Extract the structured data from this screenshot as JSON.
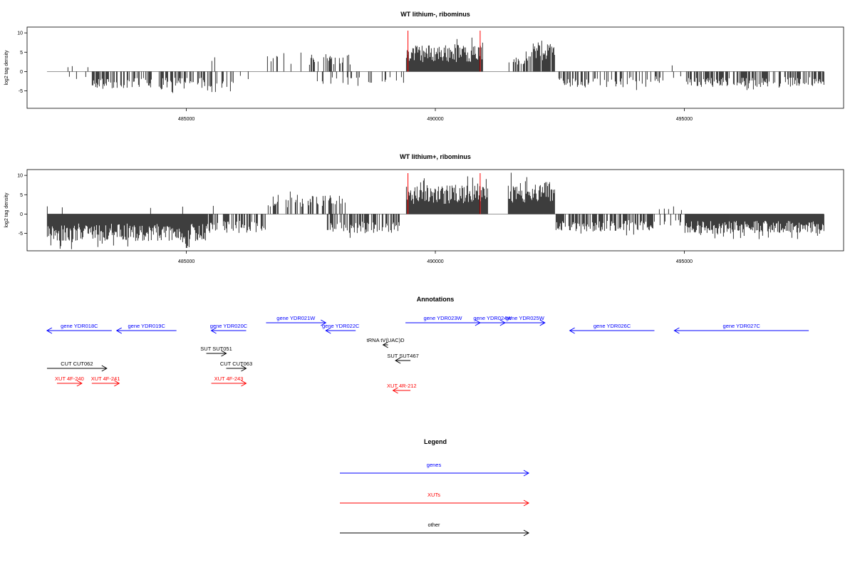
{
  "chart_data": [
    {
      "type": "bar",
      "title": "WT lithium-, ribominus",
      "ylabel": "log2 tag density",
      "xlabel": "",
      "xlim": [
        481800,
        498200
      ],
      "ylim": [
        -9.5,
        11.5
      ],
      "yticks": [
        -5,
        0,
        5,
        10
      ],
      "xticks": [
        485000,
        490000,
        495000
      ],
      "marker_lines": [
        489450,
        490900
      ],
      "marker_color": "#ff0000",
      "bar_color": "#000000",
      "grid": false,
      "signal_segments": [
        {
          "start": 482200,
          "end": 483100,
          "sign": -1,
          "density": 0.05,
          "max": 2.5,
          "pos_max": 1.8
        },
        {
          "start": 483100,
          "end": 485500,
          "sign": -1,
          "density": 0.55,
          "max": 4.5
        },
        {
          "start": 485500,
          "end": 486000,
          "sign": -1,
          "density": 0.25,
          "max": 5.5,
          "pos_max": 4
        },
        {
          "start": 486000,
          "end": 486600,
          "sign": -1,
          "density": 0.1,
          "max": 2
        },
        {
          "start": 486600,
          "end": 488300,
          "sign": 1,
          "density": 0.2,
          "max": 5
        },
        {
          "start": 487600,
          "end": 488800,
          "sign": -1,
          "density": 0.2,
          "max": 4
        },
        {
          "start": 488800,
          "end": 489400,
          "sign": -1,
          "density": 0.1,
          "max": 3
        },
        {
          "start": 489400,
          "end": 490950,
          "sign": 1,
          "density": 1.0,
          "max": 7
        },
        {
          "start": 491450,
          "end": 491950,
          "sign": 1,
          "density": 0.45,
          "max": 4.5
        },
        {
          "start": 491950,
          "end": 492400,
          "sign": 1,
          "density": 0.9,
          "max": 8
        },
        {
          "start": 492400,
          "end": 494300,
          "sign": -1,
          "density": 0.35,
          "max": 4
        },
        {
          "start": 494300,
          "end": 495000,
          "sign": -1,
          "density": 0.15,
          "max": 3,
          "pos_max": 2
        },
        {
          "start": 495000,
          "end": 497800,
          "sign": -1,
          "density": 0.55,
          "max": 4
        }
      ]
    },
    {
      "type": "bar",
      "title": "WT lithium+, ribominus",
      "ylabel": "log2 tag density",
      "xlabel": "",
      "xlim": [
        481800,
        498200
      ],
      "ylim": [
        -9.5,
        11.5
      ],
      "yticks": [
        -5,
        0,
        5,
        10
      ],
      "xticks": [
        485000,
        490000,
        495000
      ],
      "marker_lines": [
        489450,
        490900
      ],
      "marker_color": "#ff0000",
      "bar_color": "#000000",
      "grid": false,
      "signal_segments": [
        {
          "start": 482200,
          "end": 485400,
          "sign": -1,
          "density": 1.0,
          "max": 7,
          "pos_max": 2
        },
        {
          "start": 485400,
          "end": 486600,
          "sign": -1,
          "density": 0.6,
          "max": 5,
          "pos_max": 3.5
        },
        {
          "start": 486600,
          "end": 488200,
          "sign": 1,
          "density": 0.35,
          "max": 5
        },
        {
          "start": 487800,
          "end": 489300,
          "sign": -1,
          "density": 0.55,
          "max": 5
        },
        {
          "start": 489400,
          "end": 491050,
          "sign": 1,
          "density": 1.0,
          "max": 7.5
        },
        {
          "start": 491450,
          "end": 492400,
          "sign": 1,
          "density": 1.0,
          "max": 8.5
        },
        {
          "start": 492400,
          "end": 494400,
          "sign": -1,
          "density": 0.7,
          "max": 4.5
        },
        {
          "start": 494400,
          "end": 495000,
          "sign": -1,
          "density": 0.15,
          "max": 3,
          "pos_max": 2
        },
        {
          "start": 495000,
          "end": 497800,
          "sign": -1,
          "density": 1.0,
          "max": 5
        }
      ]
    },
    {
      "type": "annotation-track",
      "title": "Annotations",
      "xlim": [
        481800,
        498200
      ],
      "features": [
        {
          "label": "gene YDR018C",
          "start": 482200,
          "end": 483500,
          "strand": "-",
          "row": 1,
          "color": "#0000ff"
        },
        {
          "label": "gene YDR019C",
          "start": 483600,
          "end": 484800,
          "strand": "-",
          "row": 1,
          "color": "#0000ff"
        },
        {
          "label": "gene YDR020C",
          "start": 485500,
          "end": 486200,
          "strand": "-",
          "row": 1,
          "color": "#0000ff"
        },
        {
          "label": "gene YDR021W",
          "start": 486600,
          "end": 487800,
          "strand": "+",
          "row": 0,
          "color": "#0000ff"
        },
        {
          "label": "gene YDR022C",
          "start": 487800,
          "end": 488400,
          "strand": "-",
          "row": 1,
          "color": "#0000ff"
        },
        {
          "label": "gene YDR023W",
          "start": 489400,
          "end": 490900,
          "strand": "+",
          "row": 0,
          "color": "#0000ff"
        },
        {
          "label": "gene YDR024W",
          "start": 490900,
          "end": 491400,
          "strand": "+",
          "row": 0,
          "color": "#0000ff"
        },
        {
          "label": "gene YDR025W",
          "start": 491400,
          "end": 492200,
          "strand": "+",
          "row": 0,
          "color": "#0000ff"
        },
        {
          "label": "gene YDR026C",
          "start": 492700,
          "end": 494400,
          "strand": "-",
          "row": 1,
          "color": "#0000ff"
        },
        {
          "label": "gene YDR027C",
          "start": 494800,
          "end": 497500,
          "strand": "-",
          "row": 1,
          "color": "#0000ff"
        },
        {
          "label": "tRNA tV(UAC)D",
          "start": 488950,
          "end": 489050,
          "strand": "-",
          "row": 2,
          "color": "#000000"
        },
        {
          "label": "SUT SUT051",
          "start": 485400,
          "end": 485800,
          "strand": "+",
          "row": 3,
          "color": "#000000"
        },
        {
          "label": "SUT SUT467",
          "start": 489200,
          "end": 489500,
          "strand": "-",
          "row": 4,
          "color": "#000000"
        },
        {
          "label": "CUT CUT062",
          "start": 482200,
          "end": 483400,
          "strand": "+",
          "row": 5,
          "color": "#000000"
        },
        {
          "label": "CUT CUT063",
          "start": 485800,
          "end": 486200,
          "strand": "+",
          "row": 5,
          "color": "#000000"
        },
        {
          "label": "XUT 4F-240",
          "start": 482400,
          "end": 482900,
          "strand": "+",
          "row": 6,
          "color": "#ff0000"
        },
        {
          "label": "XUT 4F-241",
          "start": 483100,
          "end": 483650,
          "strand": "+",
          "row": 6,
          "color": "#ff0000"
        },
        {
          "label": "XUT 4F-243",
          "start": 485500,
          "end": 486200,
          "strand": "+",
          "row": 6,
          "color": "#ff0000"
        },
        {
          "label": "XUT 4R-212",
          "start": 489150,
          "end": 489500,
          "strand": "-",
          "row": 7,
          "color": "#ff0000"
        }
      ]
    },
    {
      "type": "legend",
      "title": "Legend",
      "entries": [
        {
          "label": "genes",
          "color": "#0000ff"
        },
        {
          "label": "XUTs",
          "color": "#ff0000"
        },
        {
          "label": "other",
          "color": "#000000"
        }
      ]
    }
  ]
}
